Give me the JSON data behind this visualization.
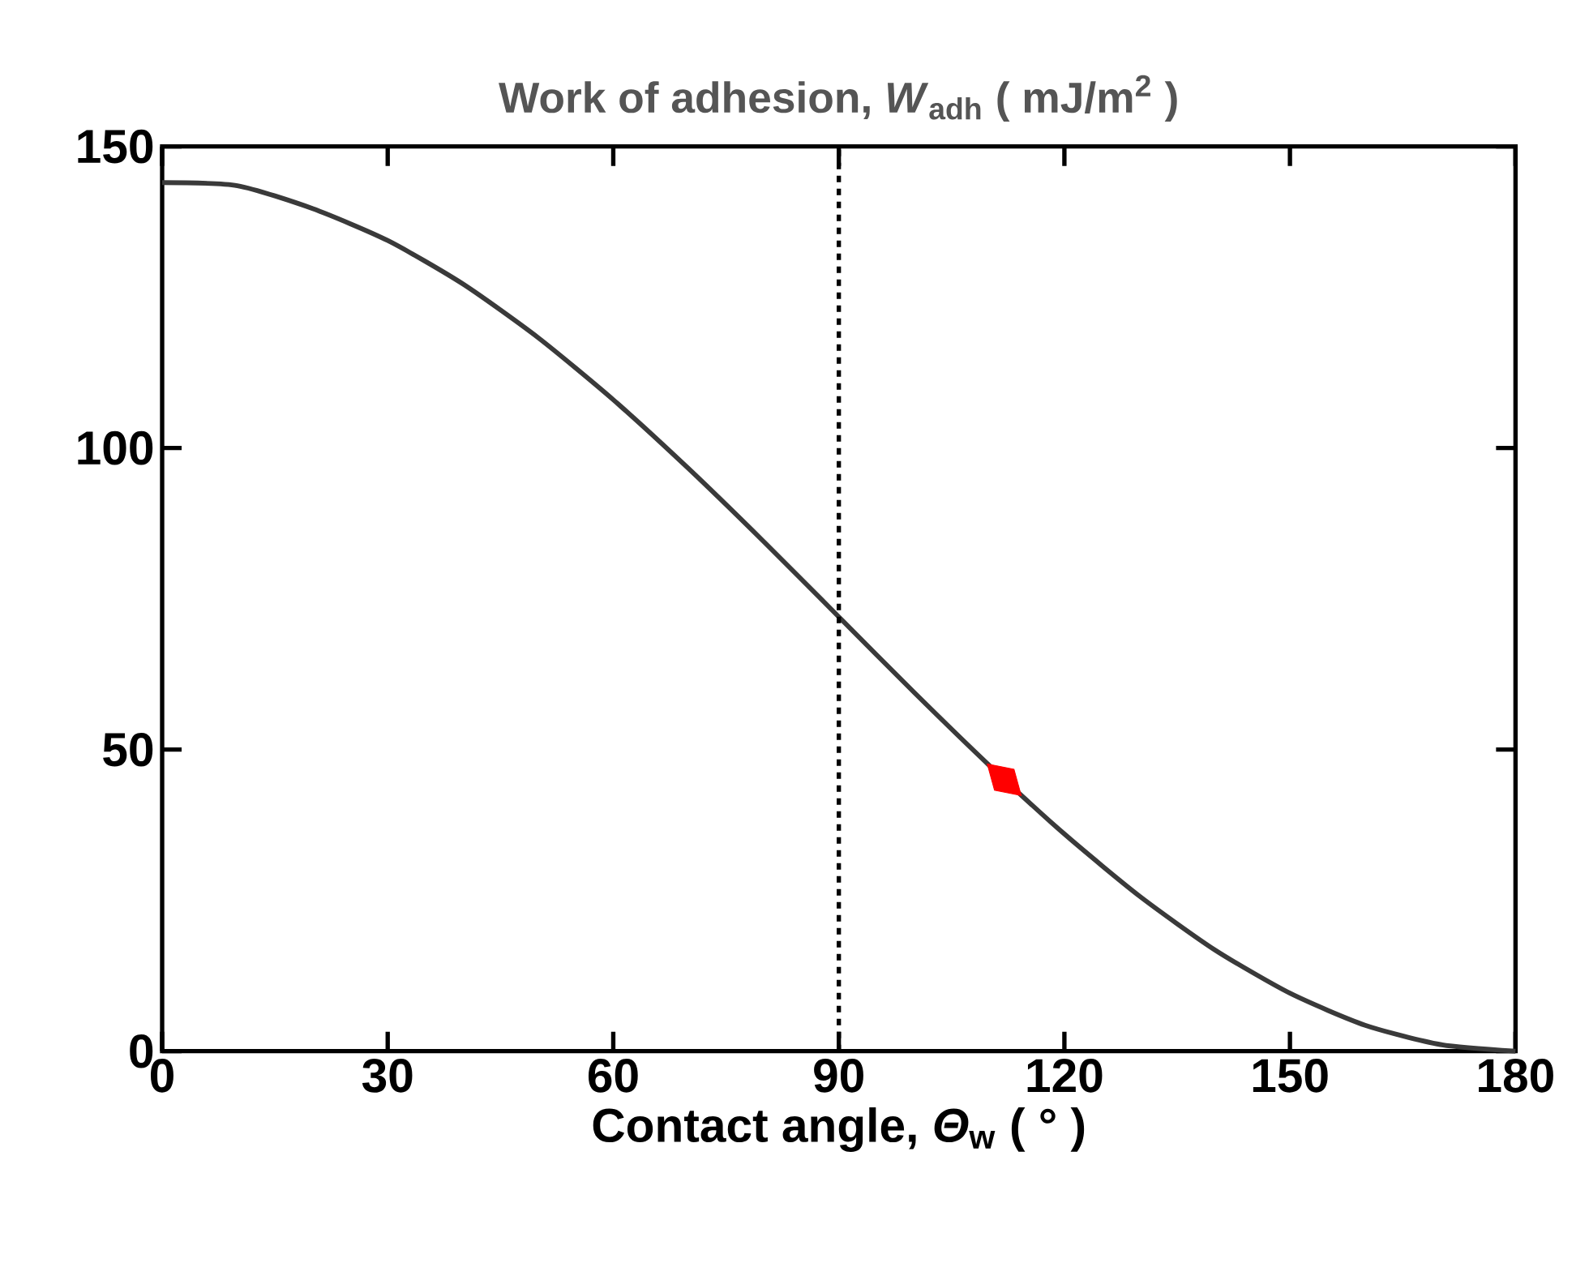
{
  "chart_data": {
    "type": "line",
    "title": "Work of adhesion, *W*$_{adh}$ ( mJ/m$^{2}$ )",
    "xlabel": "Contact angle, *Θ*$_{w}$  ( ° )",
    "xlim": [
      0,
      180
    ],
    "xticks": [
      0,
      30,
      60,
      90,
      120,
      150,
      180
    ],
    "ylim": [
      0,
      150
    ],
    "yticks": [
      0,
      50,
      100,
      150
    ],
    "grid": false,
    "series": [
      {
        "color": "#3a3a3a",
        "line_style": "solid",
        "x": [
          0,
          10,
          20,
          30,
          40,
          50,
          60,
          70,
          80,
          90,
          100,
          110,
          120,
          130,
          140,
          150,
          160,
          170,
          180
        ],
        "values": [
          144,
          143.5,
          139.7,
          134.4,
          127.2,
          118.3,
          108,
          96.6,
          84.5,
          72,
          59.5,
          47.4,
          36,
          25.7,
          16.8,
          9.6,
          4.3,
          1.1,
          0
        ]
      },
      {
        "type": "scatter",
        "color": "#ff0000",
        "marker": "diamond",
        "x": [
          112
        ],
        "values": [
          45
        ]
      }
    ],
    "ref_lines": [
      {
        "axis": "x",
        "value": 90,
        "color": "#000000",
        "line_style": "dotted"
      }
    ]
  }
}
